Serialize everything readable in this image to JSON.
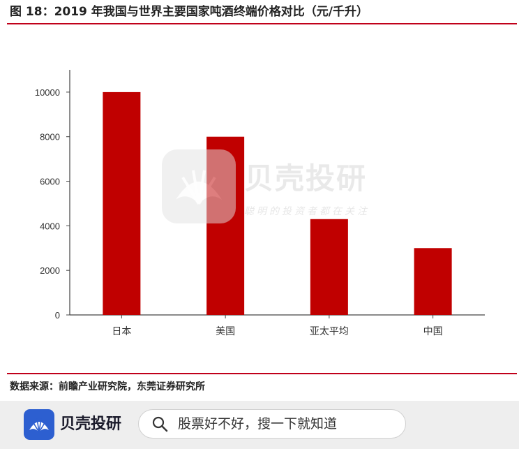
{
  "header": {
    "title": "图 18：2019 年我国与世界主要国家吨酒终端价格对比（元/千升）"
  },
  "chart_data": {
    "type": "bar",
    "categories": [
      "日本",
      "美国",
      "亚太平均",
      "中国"
    ],
    "values": [
      10000,
      8000,
      4300,
      3000
    ],
    "ylim": [
      0,
      11000
    ],
    "yticks": [
      0,
      2000,
      4000,
      6000,
      8000,
      10000
    ],
    "grid": false,
    "bar_color": "#c00000"
  },
  "footer_note": {
    "source": "数据来源：前瞻产业研究院，东莞证券研究所"
  },
  "watermark": {
    "title": "贝壳投研",
    "subtitle": "聪明的投资者都在关注"
  },
  "bottom_bar": {
    "logo_text": "贝壳投研",
    "search_placeholder": "股票好不好，搜一下就知道",
    "icons": {
      "logo": "shell-logo-icon",
      "search": "search-icon"
    }
  }
}
